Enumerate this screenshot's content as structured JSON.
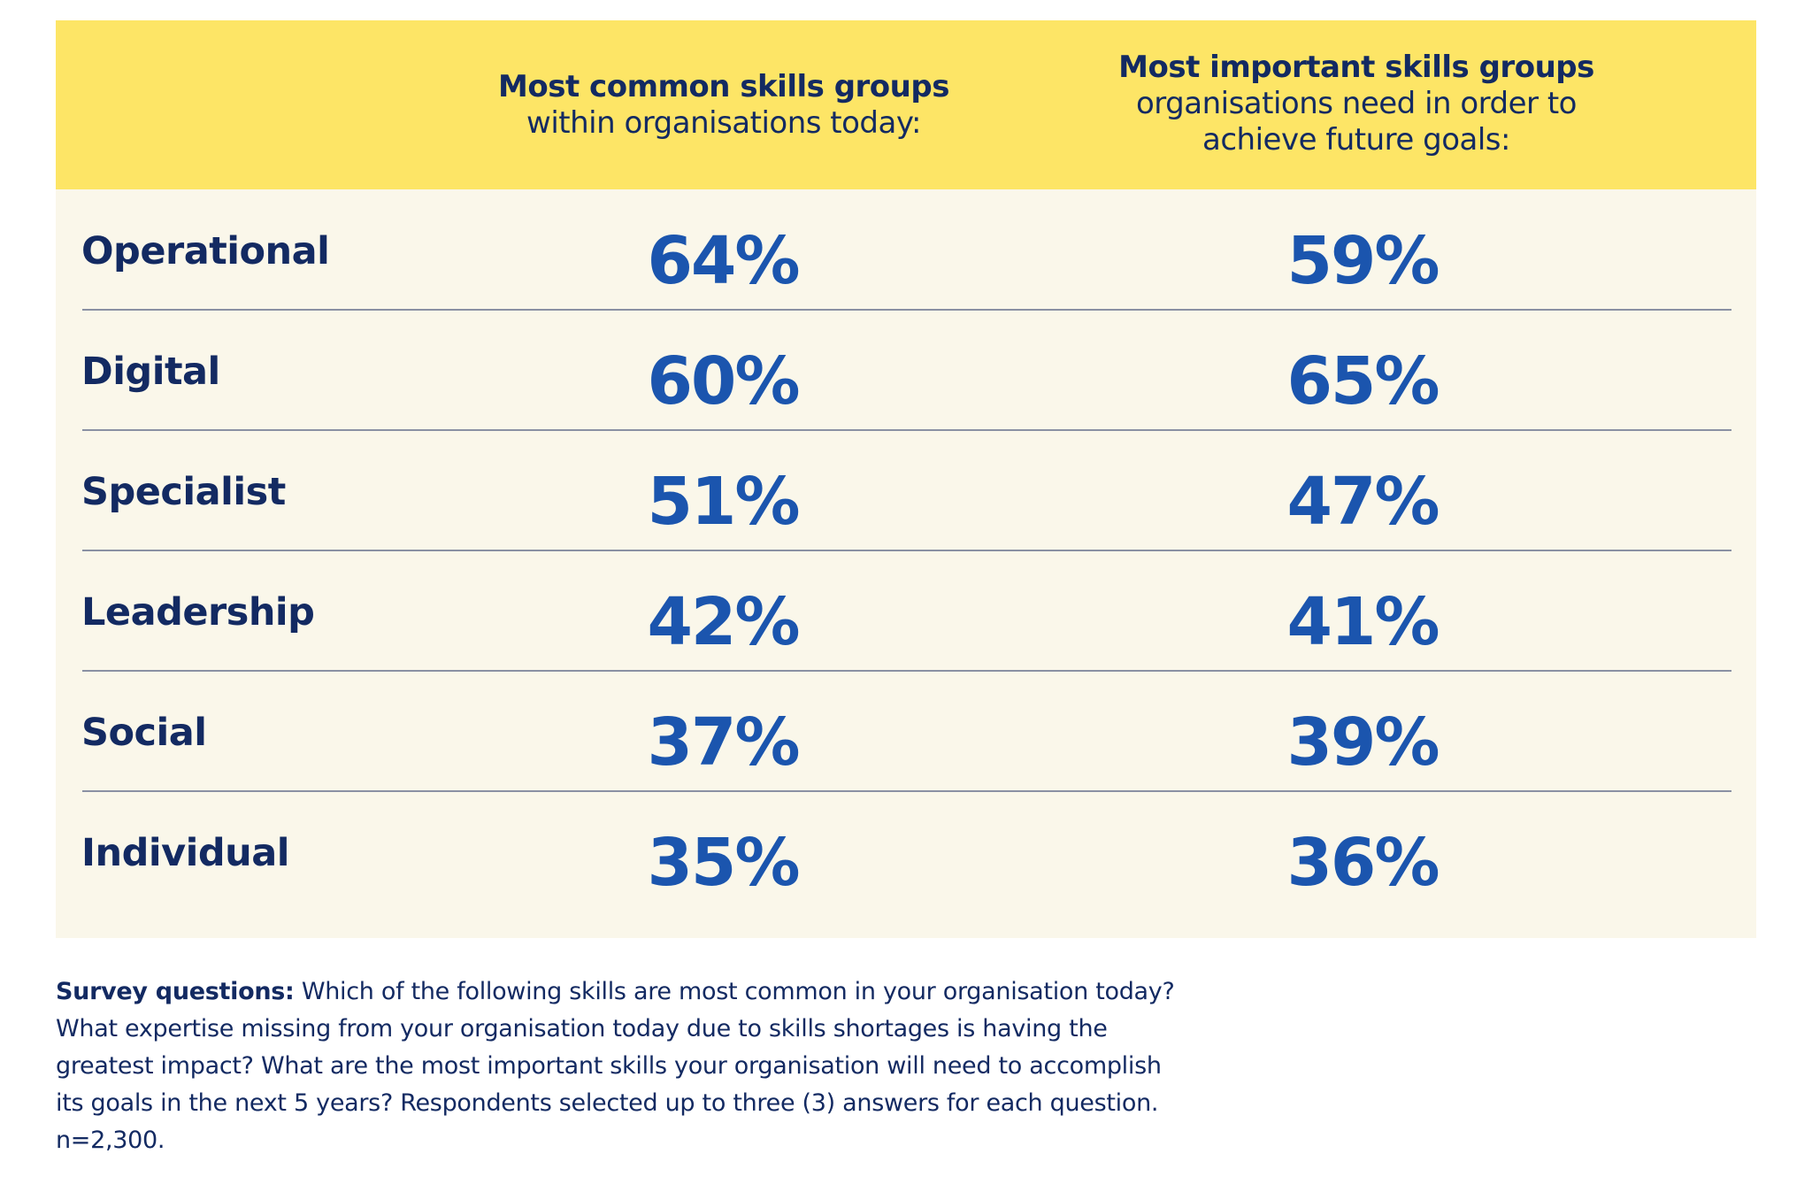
{
  "chart_data": {
    "type": "table",
    "columns": [
      {
        "heading_bold": "Most common skills groups",
        "heading_rest": "within organisations today:"
      },
      {
        "heading_bold": "Most important skills groups",
        "heading_rest_line1": "organisations need in order to",
        "heading_rest_line2": "achieve future goals:"
      }
    ],
    "categories": [
      "Operational",
      "Digital",
      "Specialist",
      "Leadership",
      "Social",
      "Individual"
    ],
    "series": [
      {
        "values": [
          64,
          60,
          51,
          42,
          37,
          35
        ]
      },
      {
        "values": [
          59,
          65,
          47,
          41,
          39,
          36
        ]
      }
    ],
    "unit": "%",
    "rows": [
      {
        "label": "Operational",
        "v1": "64%",
        "v2": "59%"
      },
      {
        "label": "Digital",
        "v1": "60%",
        "v2": "65%"
      },
      {
        "label": "Specialist",
        "v1": "51%",
        "v2": "47%"
      },
      {
        "label": "Leadership",
        "v1": "42%",
        "v2": "41%"
      },
      {
        "label": "Social",
        "v1": "37%",
        "v2": "39%"
      },
      {
        "label": "Individual",
        "v1": "35%",
        "v2": "36%"
      }
    ]
  },
  "footnote": {
    "lead": "Survey questions:",
    "text": " Which of the following skills are most common in your organisation today? What expertise missing from your organisation today due to skills shortages is having the greatest impact? What are the most important skills your organisation will need to accomplish its goals in the next 5 years? Respondents selected up to three (3) answers for each question. n=2,300."
  },
  "colors": {
    "header_band": "#fde566",
    "body_background": "#faf7ea",
    "label_text": "#132a62",
    "value_text": "#1b55ae",
    "divider": "#8a91a3"
  }
}
